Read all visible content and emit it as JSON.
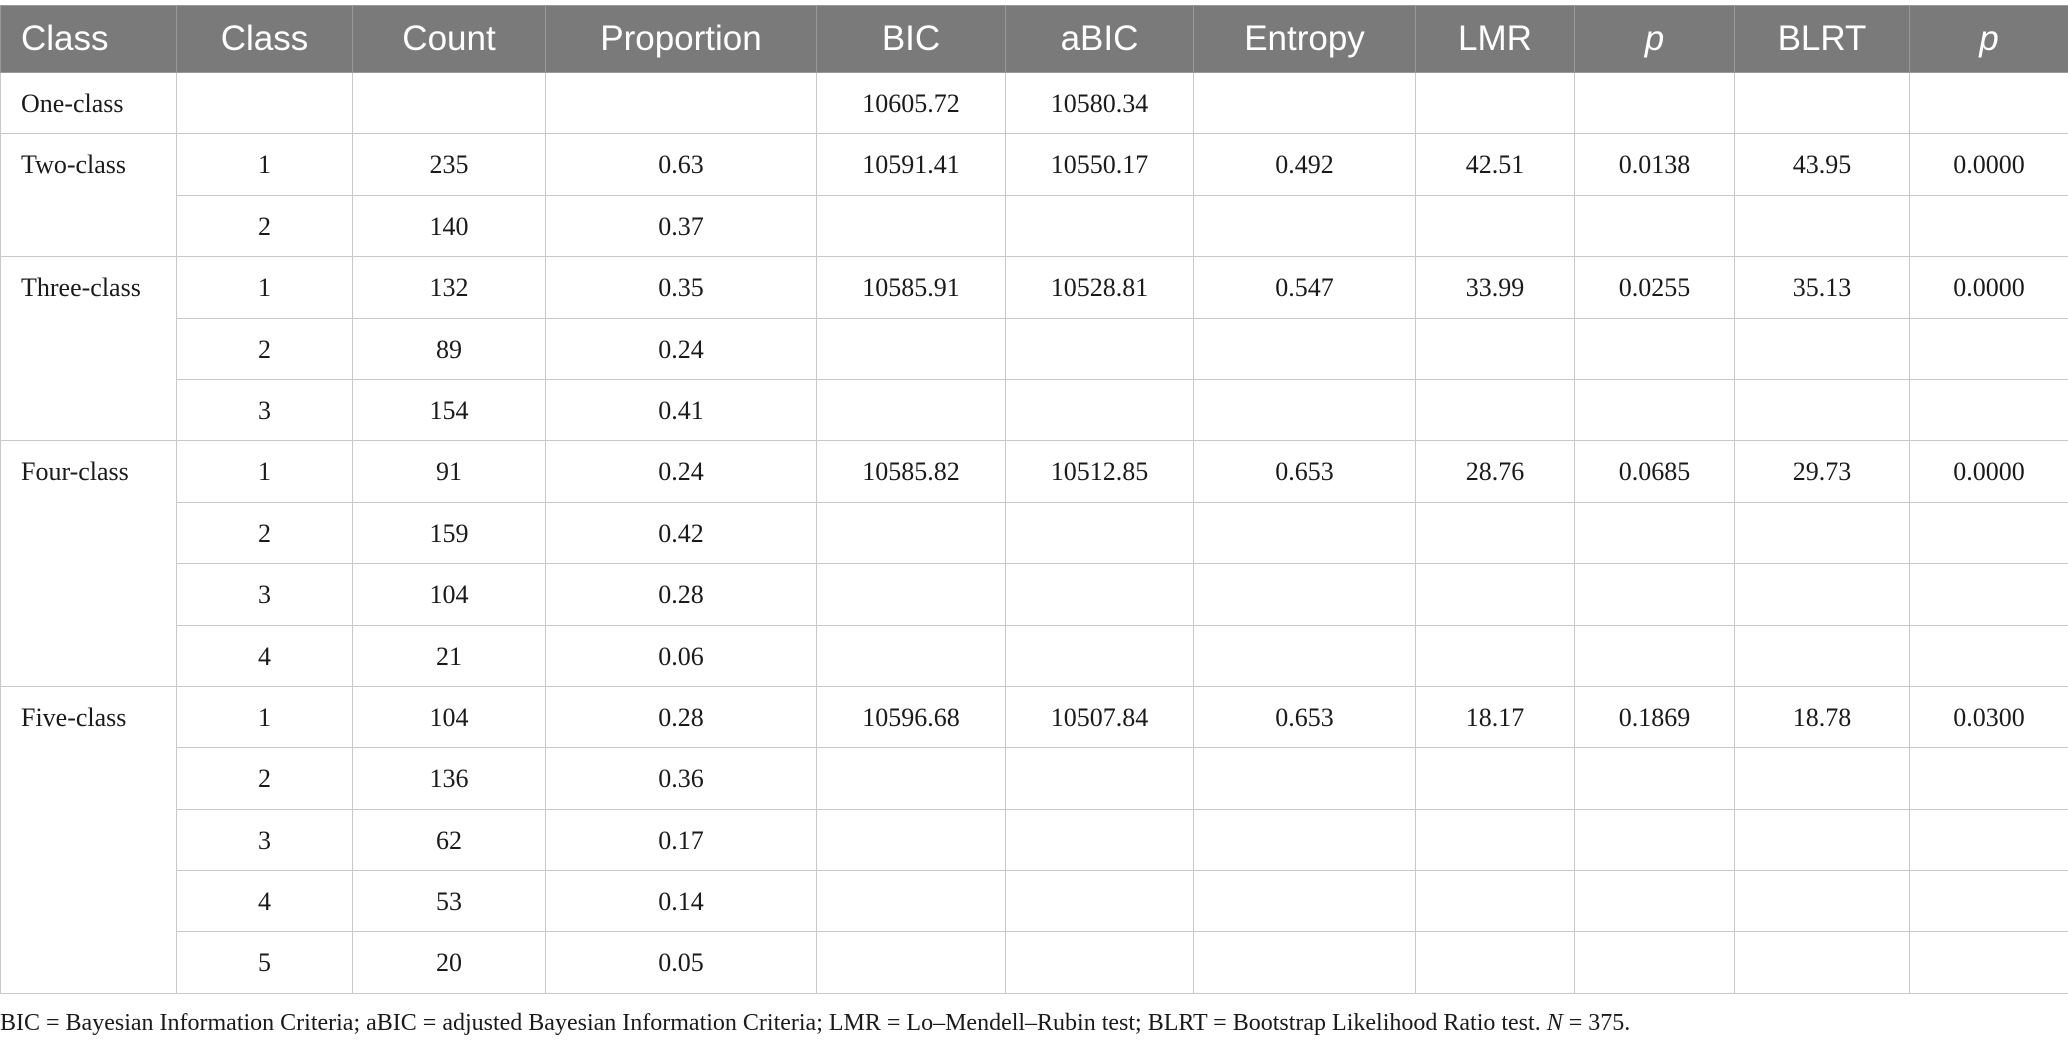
{
  "table": {
    "headers": [
      "Class",
      "Class",
      "Count",
      "Proportion",
      "BIC",
      "aBIC",
      "Entropy",
      "LMR",
      "p",
      "BLRT",
      "p"
    ],
    "groups": [
      {
        "label": "One-class",
        "bic": "10605.72",
        "abic": "10580.34",
        "entropy": "",
        "lmr": "",
        "lmr_p": "",
        "blrt": "",
        "blrt_p": "",
        "rows": [
          {
            "class": "",
            "count": "",
            "proportion": ""
          }
        ]
      },
      {
        "label": "Two-class",
        "bic": "10591.41",
        "abic": "10550.17",
        "entropy": "0.492",
        "lmr": "42.51",
        "lmr_p": "0.0138",
        "blrt": "43.95",
        "blrt_p": "0.0000",
        "rows": [
          {
            "class": "1",
            "count": "235",
            "proportion": "0.63"
          },
          {
            "class": "2",
            "count": "140",
            "proportion": "0.37"
          }
        ]
      },
      {
        "label": "Three-class",
        "bic": "10585.91",
        "abic": "10528.81",
        "entropy": "0.547",
        "lmr": "33.99",
        "lmr_p": "0.0255",
        "blrt": "35.13",
        "blrt_p": "0.0000",
        "rows": [
          {
            "class": "1",
            "count": "132",
            "proportion": "0.35"
          },
          {
            "class": "2",
            "count": "89",
            "proportion": "0.24"
          },
          {
            "class": "3",
            "count": "154",
            "proportion": "0.41"
          }
        ]
      },
      {
        "label": "Four-class",
        "bic": "10585.82",
        "abic": "10512.85",
        "entropy": "0.653",
        "lmr": "28.76",
        "lmr_p": "0.0685",
        "blrt": "29.73",
        "blrt_p": "0.0000",
        "rows": [
          {
            "class": "1",
            "count": "91",
            "proportion": "0.24"
          },
          {
            "class": "2",
            "count": "159",
            "proportion": "0.42"
          },
          {
            "class": "3",
            "count": "104",
            "proportion": "0.28"
          },
          {
            "class": "4",
            "count": "21",
            "proportion": "0.06"
          }
        ]
      },
      {
        "label": "Five-class",
        "bic": "10596.68",
        "abic": "10507.84",
        "entropy": "0.653",
        "lmr": "18.17",
        "lmr_p": "0.1869",
        "blrt": "18.78",
        "blrt_p": "0.0300",
        "rows": [
          {
            "class": "1",
            "count": "104",
            "proportion": "0.28"
          },
          {
            "class": "2",
            "count": "136",
            "proportion": "0.36"
          },
          {
            "class": "3",
            "count": "62",
            "proportion": "0.17"
          },
          {
            "class": "4",
            "count": "53",
            "proportion": "0.14"
          },
          {
            "class": "5",
            "count": "20",
            "proportion": "0.05"
          }
        ]
      }
    ]
  },
  "footnote": {
    "text": "BIC = Bayesian Information Criteria; aBIC = adjusted Bayesian Information Criteria; LMR = Lo–Mendell–Rubin test; BLRT = Bootstrap Likelihood Ratio test. ",
    "n_label": "N",
    "n_value": " = 375."
  }
}
